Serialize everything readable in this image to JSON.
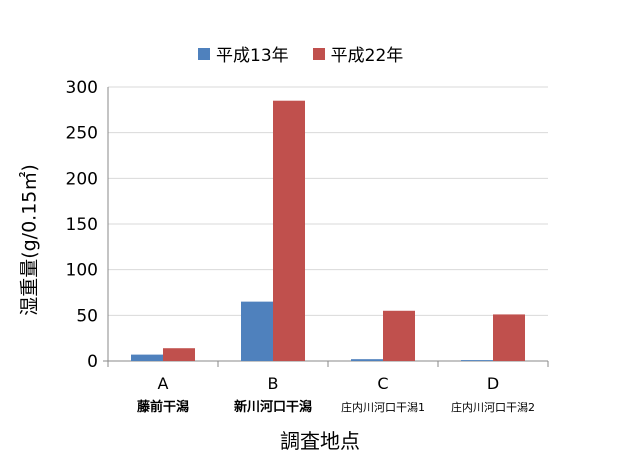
{
  "chart_data": {
    "type": "bar",
    "categories": [
      "A",
      "B",
      "C",
      "D"
    ],
    "category_sublabels": [
      "藤前干潟",
      "新川河口干潟",
      "庄内川河口干潟1",
      "庄内川河口干潟2"
    ],
    "series": [
      {
        "name": "平成13年",
        "color": "#4F81BD",
        "values": [
          7,
          65,
          2,
          1
        ]
      },
      {
        "name": "平成22年",
        "color": "#C0504D",
        "values": [
          14,
          285,
          55,
          51
        ]
      }
    ],
    "xlabel": "調査地点",
    "ylabel": "湿重量(g/0.15㎡)",
    "ylim": [
      0,
      300
    ],
    "yticks": [
      "0",
      "50",
      "100",
      "150",
      "200",
      "250",
      "300"
    ],
    "grid": true,
    "legend_position": "top"
  }
}
